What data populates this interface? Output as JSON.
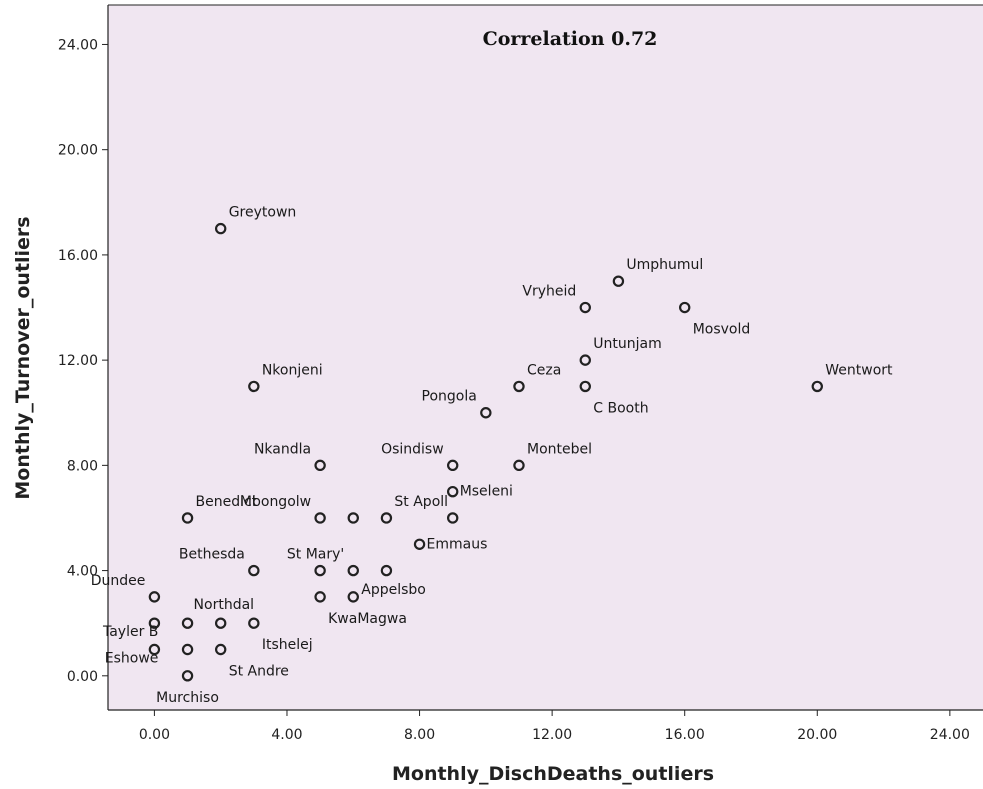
{
  "chart_data": {
    "type": "scatter",
    "title": "",
    "annotation": "Correlation 0.72",
    "xlabel": "Monthly_DischDeaths_outliers",
    "ylabel": "Monthly_Turnover_outliers",
    "xlim": [
      -1.4,
      25
    ],
    "ylim": [
      -1.3,
      25.5
    ],
    "xticks": [
      0,
      4,
      8,
      12,
      16,
      20,
      24
    ],
    "yticks": [
      0,
      4,
      8,
      12,
      16,
      20,
      24
    ],
    "xtick_labels": [
      "0.00",
      "4.00",
      "8.00",
      "12.00",
      "16.00",
      "20.00",
      "24.00"
    ],
    "ytick_labels": [
      "0.00",
      "4.00",
      "8.00",
      "12.00",
      "16.00",
      "20.00",
      "24.00"
    ],
    "grid": false,
    "colors": {
      "plot_background": "#f0e6f1",
      "marker_stroke": "#222222",
      "frame": "#222222"
    },
    "points": [
      {
        "x": 2,
        "y": 17,
        "label": "Greytown",
        "anchor": "above-right"
      },
      {
        "x": 14,
        "y": 15,
        "label": "Umphumul",
        "anchor": "above-right"
      },
      {
        "x": 13,
        "y": 14,
        "label": "Vryheid",
        "anchor": "above-left"
      },
      {
        "x": 16,
        "y": 14,
        "label": "Mosvold",
        "anchor": "below-right"
      },
      {
        "x": 13,
        "y": 12,
        "label": "Untunjam",
        "anchor": "above-right"
      },
      {
        "x": 3,
        "y": 11,
        "label": "Nkonjeni",
        "anchor": "above-right"
      },
      {
        "x": 11,
        "y": 11,
        "label": "Ceza",
        "anchor": "above-right"
      },
      {
        "x": 13,
        "y": 11,
        "label": "C Booth",
        "anchor": "below-right"
      },
      {
        "x": 20,
        "y": 11,
        "label": "Wentwort",
        "anchor": "above-right"
      },
      {
        "x": 10,
        "y": 10,
        "label": "Pongola",
        "anchor": "above-left"
      },
      {
        "x": 5,
        "y": 8,
        "label": "Nkandla",
        "anchor": "above-left"
      },
      {
        "x": 9,
        "y": 8,
        "label": "Osindisw",
        "anchor": "above-left"
      },
      {
        "x": 11,
        "y": 8,
        "label": "Montebel",
        "anchor": "above-right"
      },
      {
        "x": 9,
        "y": 7,
        "label": "Mseleni",
        "anchor": "right"
      },
      {
        "x": 1,
        "y": 6,
        "label": "Benedict",
        "anchor": "above-right"
      },
      {
        "x": 5,
        "y": 6,
        "label": "Mbongolw",
        "anchor": "above-left"
      },
      {
        "x": 6,
        "y": 6,
        "label": "",
        "anchor": "none"
      },
      {
        "x": 7,
        "y": 6,
        "label": "St Apoll",
        "anchor": "above-right"
      },
      {
        "x": 9,
        "y": 6,
        "label": "",
        "anchor": "none"
      },
      {
        "x": 8,
        "y": 5,
        "label": "Emmaus",
        "anchor": "right"
      },
      {
        "x": 3,
        "y": 4,
        "label": "Bethesda",
        "anchor": "above-left"
      },
      {
        "x": 5,
        "y": 4,
        "label": "",
        "anchor": "none"
      },
      {
        "x": 6,
        "y": 4,
        "label": "St Mary'",
        "anchor": "above-left"
      },
      {
        "x": 7,
        "y": 4,
        "label": "",
        "anchor": "none"
      },
      {
        "x": 0,
        "y": 3,
        "label": "Dundee",
        "anchor": "above-left"
      },
      {
        "x": 5,
        "y": 3,
        "label": "KwaMagwa",
        "anchor": "below-right"
      },
      {
        "x": 6,
        "y": 3,
        "label": "Appelsbo",
        "anchor": "upright"
      },
      {
        "x": 0,
        "y": 2,
        "label": "Tayler B",
        "anchor": "below-left"
      },
      {
        "x": 1,
        "y": 2,
        "label": "Northdal",
        "anchor": "above-right-near"
      },
      {
        "x": 2,
        "y": 2,
        "label": "",
        "anchor": "none"
      },
      {
        "x": 3,
        "y": 2,
        "label": "Itshelej",
        "anchor": "below-right"
      },
      {
        "x": 0,
        "y": 1,
        "label": "Eshowe",
        "anchor": "below-left"
      },
      {
        "x": 1,
        "y": 1,
        "label": "",
        "anchor": "none"
      },
      {
        "x": 2,
        "y": 1,
        "label": "St Andre",
        "anchor": "below-right"
      },
      {
        "x": 1,
        "y": 0,
        "label": "Murchiso",
        "anchor": "below"
      }
    ]
  }
}
